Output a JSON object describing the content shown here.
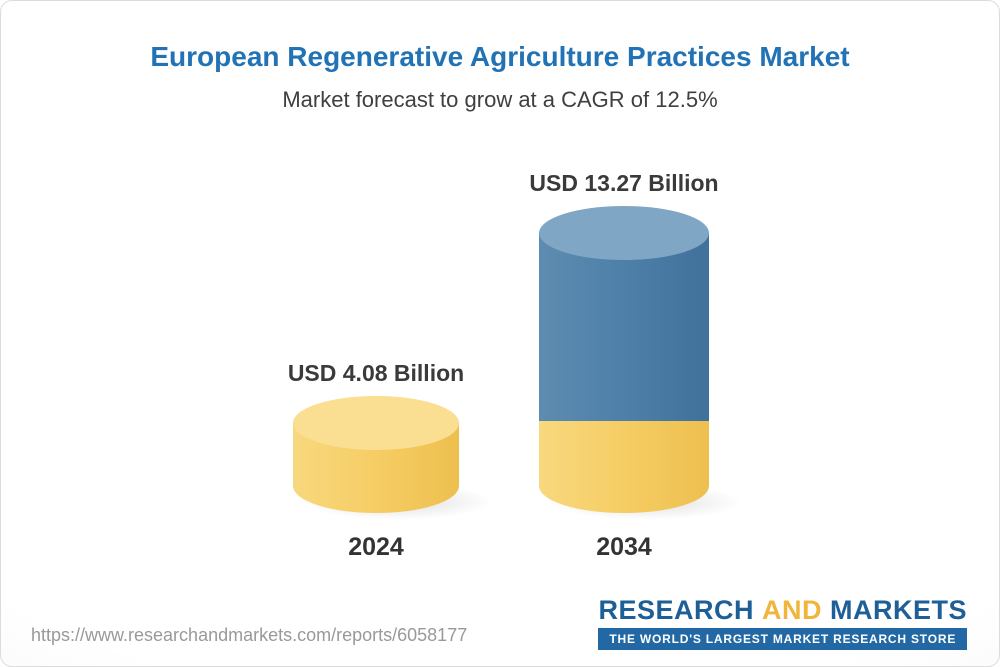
{
  "header": {
    "title": "European Regenerative Agriculture Practices Market",
    "subtitle": "Market forecast to grow at a CAGR of 12.5%"
  },
  "chart_data": {
    "type": "bar",
    "categories": [
      "2024",
      "2034"
    ],
    "values": [
      4.08,
      13.27
    ],
    "data_labels": [
      "USD 4.08 Billion",
      "USD 13.27 Billion"
    ],
    "unit": "USD Billion",
    "cagr_percent": 12.5,
    "title": "European Regenerative Agriculture Practices Market",
    "subtitle": "Market forecast to grow at a CAGR of 12.5%",
    "ylim": [
      0,
      13.27
    ],
    "grid": false,
    "legend": false,
    "bar_style": "3d-cylinder",
    "bar_colors": {
      "bar_2024": "#F5CC62",
      "bar_2034_growth": "#4C7EA8",
      "bar_2034_base": "#F5CC62"
    }
  },
  "footer": {
    "url": "https://www.researchandmarkets.com/reports/6058177",
    "logo": {
      "research": "RESEARCH",
      "and": "AND",
      "markets": "MARKETS",
      "tagline": "THE WORLD'S LARGEST MARKET RESEARCH STORE"
    }
  },
  "colors": {
    "title_blue": "#2273B5",
    "bar_yellow": "#F5CC62",
    "bar_yellow_top": "#FADF93",
    "bar_blue": "#4C7EA8",
    "bar_blue_top": "#7FA6C4",
    "logo_blue": "#1E5F97",
    "logo_gold": "#F1B53B",
    "tagline_bg": "#2268A4"
  }
}
